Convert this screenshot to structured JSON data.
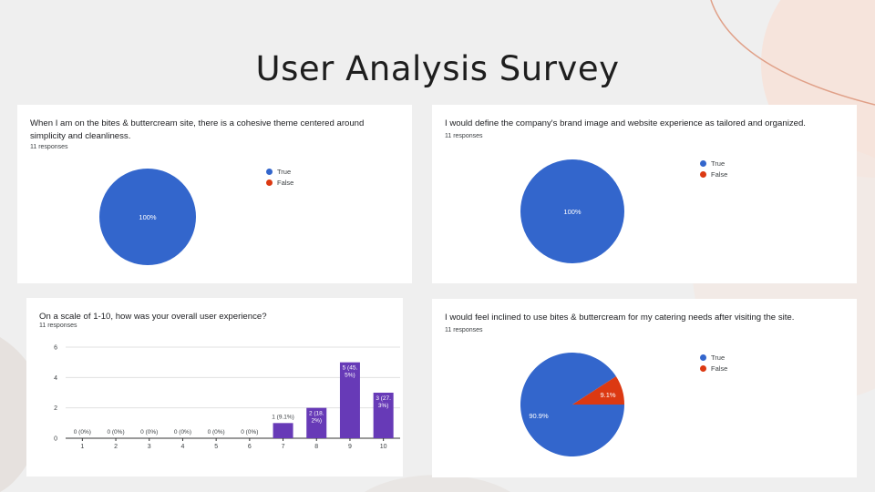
{
  "slide": {
    "title": "User Analysis Survey"
  },
  "colors": {
    "true": "#3366cc",
    "false": "#dc3912",
    "bar": "#673ab7"
  },
  "chart_data": [
    {
      "type": "pie",
      "question": "When I am on the bites & buttercream site, there is a cohesive theme centered around simplicity and cleanliness.",
      "responses": "11 responses",
      "labels": [
        "True",
        "False"
      ],
      "values": [
        100,
        0
      ],
      "slice_labels": [
        "100%",
        ""
      ],
      "legend_position": "right"
    },
    {
      "type": "pie",
      "question": "I would define the company's brand image and website experience as tailored and organized.",
      "responses": "11 responses",
      "labels": [
        "True",
        "False"
      ],
      "values": [
        100,
        0
      ],
      "slice_labels": [
        "100%",
        ""
      ],
      "legend_position": "right"
    },
    {
      "type": "bar",
      "question": "On a scale of 1-10, how was your overall user experience?",
      "responses": "11 responses",
      "categories": [
        "1",
        "2",
        "3",
        "4",
        "5",
        "6",
        "7",
        "8",
        "9",
        "10"
      ],
      "values": [
        0,
        0,
        0,
        0,
        0,
        0,
        1,
        2,
        5,
        3
      ],
      "data_labels": [
        "0 (0%)",
        "0 (0%)",
        "0 (0%)",
        "0 (0%)",
        "0 (0%)",
        "0 (0%)",
        "1 (9.1%)",
        "2 (18.\n2%)",
        "5 (45.\n5%)",
        "3 (27.\n3%)"
      ],
      "ylim": [
        0,
        6
      ],
      "yticks": [
        "0",
        "2",
        "4",
        "6"
      ],
      "grid": true
    },
    {
      "type": "pie",
      "question": "I would feel inclined to use bites & buttercream for my catering needs after visiting the site.",
      "responses": "11 responses",
      "labels": [
        "True",
        "False"
      ],
      "values": [
        90.9,
        9.1
      ],
      "slice_labels": [
        "90.9%",
        "9.1%"
      ],
      "legend_position": "right"
    }
  ]
}
